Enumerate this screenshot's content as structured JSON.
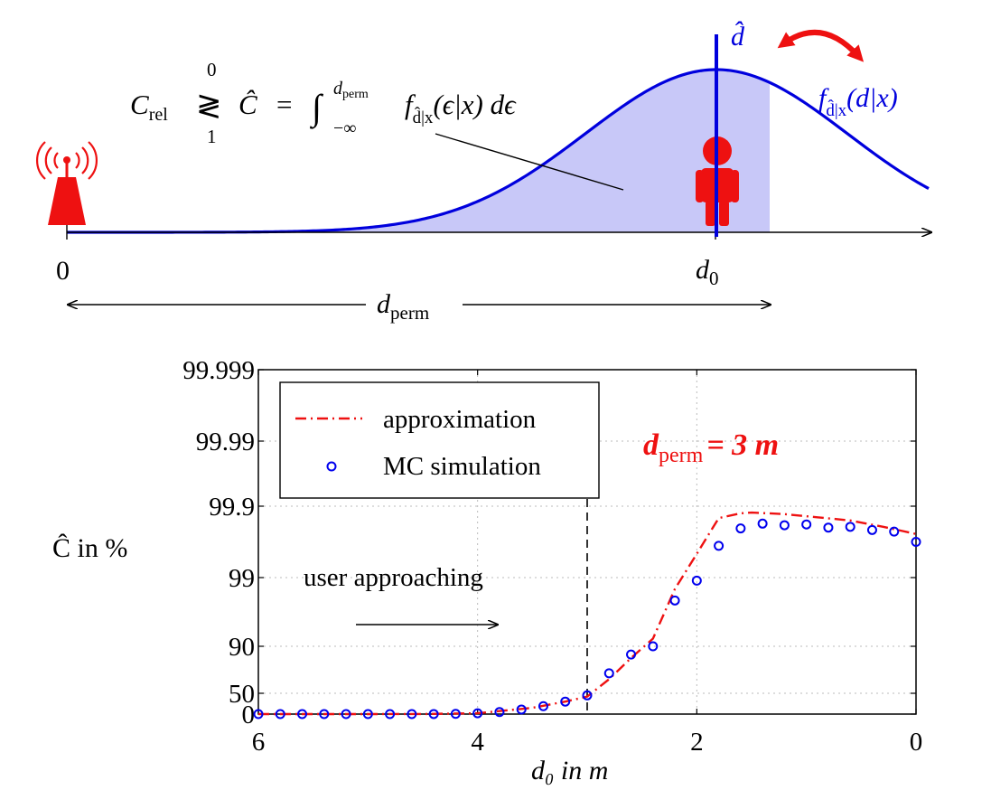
{
  "diagram": {
    "equation": {
      "lhs": "C",
      "lhs_sub": "rel",
      "rel_top": "0",
      "rel_symbol": "≷",
      "rel_bottom": "1",
      "hat_c": "Ĉ",
      "equals": "=",
      "integral": "∫",
      "upper_limit": "d",
      "upper_limit_sub": "perm",
      "lower_limit": "−∞",
      "integrand": "f",
      "integrand_sub": "d̂|x",
      "integrand_args": "(ϵ|x) dϵ"
    },
    "density_label": "f",
    "density_label_sub": "d̂|x",
    "density_label_args": "(d|x)",
    "estimate_label": "d̂",
    "origin_label": "0",
    "user_position_label": "d",
    "user_position_sub": "0",
    "span_label": "d",
    "span_label_sub": "perm",
    "colors": {
      "density_curve": "#0000dd",
      "fill": "#c8c8f8",
      "accent_red": "#ee1111",
      "marker": "#0000ee"
    },
    "icons": [
      "antenna-icon",
      "person-icon",
      "swap-arrow-icon"
    ]
  },
  "chart_data": {
    "type": "line",
    "xlabel": "d₀ in m",
    "ylabel": "Ĉ in %",
    "xlim": [
      6,
      0
    ],
    "x_reversed": true,
    "x_ticks": [
      "6",
      "4",
      "2",
      "0"
    ],
    "y_ticks": [
      "0",
      "50",
      "90",
      "99",
      "99.9",
      "99.99",
      "99.999"
    ],
    "y_tick_values": [
      0,
      50,
      90,
      99,
      99.9,
      99.99,
      99.999
    ],
    "y_scale": "custom-nonlinear",
    "grid": true,
    "legend_position": "top-left",
    "annotation": "user approaching",
    "threshold_label": "d",
    "threshold_label_sub": "perm",
    "threshold_label_value": "= 3 m",
    "threshold_x": 3,
    "series": [
      {
        "name": "approximation",
        "style": "dash-dot",
        "color": "#ee1111",
        "x": [
          6.0,
          5.0,
          4.5,
          4.0,
          3.5,
          3.2,
          3.0,
          2.8,
          2.6,
          2.4,
          2.2,
          2.0,
          1.8,
          1.6,
          1.5,
          1.2,
          0.9,
          0.6,
          0.3,
          0.0
        ],
        "y": [
          0,
          0,
          0.1,
          2,
          15,
          30,
          42,
          62,
          80,
          91,
          97.5,
          99.3,
          99.75,
          99.81,
          99.82,
          99.8,
          99.76,
          99.72,
          99.64,
          99.55
        ]
      },
      {
        "name": "MC simulation",
        "style": "circle-markers",
        "color": "#0000ee",
        "x": [
          6.0,
          5.8,
          5.6,
          5.4,
          5.2,
          5.0,
          4.8,
          4.6,
          4.4,
          4.2,
          4.0,
          3.8,
          3.6,
          3.4,
          3.2,
          3.0,
          2.8,
          2.6,
          2.4,
          2.2,
          2.0,
          1.8,
          1.6,
          1.4,
          1.2,
          1.0,
          0.8,
          0.6,
          0.4,
          0.2,
          0.0
        ],
        "y": [
          0,
          0,
          0,
          0,
          0,
          0,
          0,
          0,
          0.1,
          0.5,
          2,
          5,
          11,
          19,
          30,
          45,
          67,
          83,
          90,
          96,
          98.6,
          99.4,
          99.62,
          99.68,
          99.66,
          99.67,
          99.63,
          99.64,
          99.6,
          99.58,
          99.45
        ]
      }
    ]
  }
}
